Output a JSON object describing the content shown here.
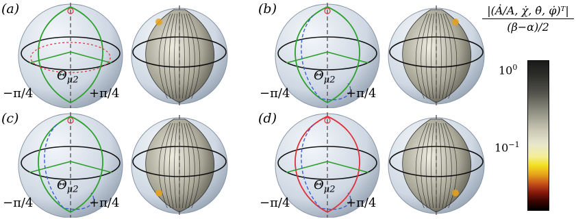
{
  "panels": [
    {
      "label": "(a)",
      "left_angle": "−π/4",
      "right_angle": "+π/4",
      "theta": "Θ",
      "theta_sub": "μ2"
    },
    {
      "label": "(b)",
      "left_angle": "−π/4",
      "right_angle": "+π/4",
      "theta": "Θ",
      "theta_sub": "μ2"
    },
    {
      "label": "(c)",
      "left_angle": "−π/4",
      "right_angle": "+π/4",
      "theta": "Θ",
      "theta_sub": "μ2"
    },
    {
      "label": "(d)",
      "left_angle": "−π/4",
      "right_angle": "+π/4",
      "theta": "Θ",
      "theta_sub": "μ2"
    }
  ],
  "colorbar": {
    "numerator": "|(Ȧ/A, χ̇, θ̇, φ̇)ᵀ|",
    "denominator": "(β−α)/2",
    "tick_top": "10",
    "tick_top_exp": "0",
    "tick_mid": "10",
    "tick_mid_exp": "−1"
  },
  "colors": {
    "green": "#2ca02c",
    "red": "#e0303a",
    "blue": "#3a5fd0",
    "sphere": "#cfd8e3"
  }
}
